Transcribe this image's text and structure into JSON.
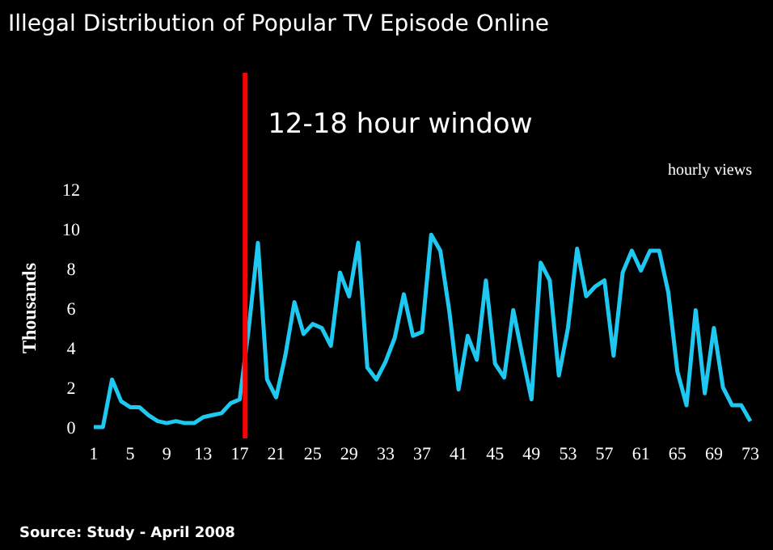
{
  "chart_data": {
    "type": "line",
    "title": "Illegal Distribution of Popular TV Episode Online",
    "ylabel": "Thousands",
    "x": [
      1,
      2,
      3,
      4,
      5,
      6,
      7,
      8,
      9,
      10,
      11,
      12,
      13,
      14,
      15,
      16,
      17,
      18,
      19,
      20,
      21,
      22,
      23,
      24,
      25,
      26,
      27,
      28,
      29,
      30,
      31,
      32,
      33,
      34,
      35,
      36,
      37,
      38,
      39,
      40,
      41,
      42,
      43,
      44,
      45,
      46,
      47,
      48,
      49,
      50,
      51,
      52,
      53,
      54,
      55,
      56,
      57,
      58,
      59,
      60,
      61,
      62,
      63,
      64,
      65,
      66,
      67,
      68,
      69,
      70,
      71,
      72,
      73
    ],
    "series": [
      {
        "color": "#1ec8f0",
        "values": [
          0,
          0,
          2.4,
          1.3,
          1.0,
          1.0,
          0.6,
          0.3,
          0.2,
          0.3,
          0.2,
          0.2,
          0.5,
          0.6,
          0.7,
          1.2,
          1.4,
          5.0,
          9.3,
          2.4,
          1.5,
          3.6,
          6.3,
          4.7,
          5.2,
          5.0,
          4.1,
          7.8,
          6.6,
          9.3,
          3.0,
          2.4,
          3.3,
          4.5,
          6.7,
          4.6,
          4.8,
          9.7,
          8.9,
          5.8,
          1.9,
          4.6,
          3.4,
          7.4,
          3.2,
          2.5,
          5.9,
          3.6,
          1.4,
          8.3,
          7.4,
          2.6,
          5.0,
          9.0,
          6.6,
          7.1,
          7.4,
          3.6,
          7.8,
          8.9,
          7.9,
          8.9,
          8.9,
          6.8,
          2.8,
          1.1,
          5.9,
          1.7,
          5.0,
          2.0,
          1.1,
          1.1,
          0.3
        ]
      }
    ],
    "xlim": [
      1,
      73
    ],
    "ylim": [
      0,
      12
    ],
    "xticks": [
      1,
      5,
      9,
      13,
      17,
      21,
      25,
      29,
      33,
      37,
      41,
      45,
      49,
      53,
      57,
      61,
      65,
      69,
      73
    ],
    "yticks": [
      0,
      2,
      4,
      6,
      8,
      10,
      12
    ],
    "ref_lines": [
      {
        "axis": "x",
        "value": 17.6,
        "label": "12-18 hour window",
        "color": "#ff0000"
      }
    ],
    "annotations": [
      "hourly views",
      "Source: Study - April 2008"
    ],
    "grid": false,
    "marker": "none",
    "line_style": "solid"
  }
}
